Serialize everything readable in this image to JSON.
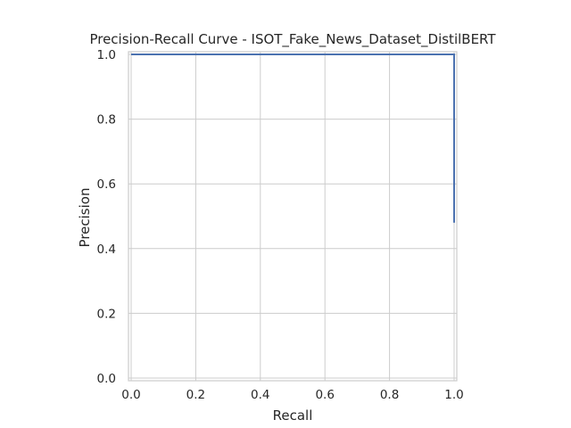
{
  "chart_data": {
    "type": "line",
    "title": "Precision-Recall Curve - ISOT_Fake_News_Dataset_DistilBERT",
    "xlabel": "Recall",
    "ylabel": "Precision",
    "xlim": [
      0.0,
      1.0
    ],
    "ylim": [
      0.0,
      1.0
    ],
    "xticks": [
      "0.0",
      "0.2",
      "0.4",
      "0.6",
      "0.8",
      "1.0"
    ],
    "yticks": [
      "0.0",
      "0.2",
      "0.4",
      "0.6",
      "0.8",
      "1.0"
    ],
    "grid": true,
    "series": [
      {
        "color": "#4c72b0",
        "x": [
          0.0,
          1.0,
          1.0
        ],
        "y": [
          1.0,
          1.0,
          0.48
        ]
      }
    ]
  }
}
